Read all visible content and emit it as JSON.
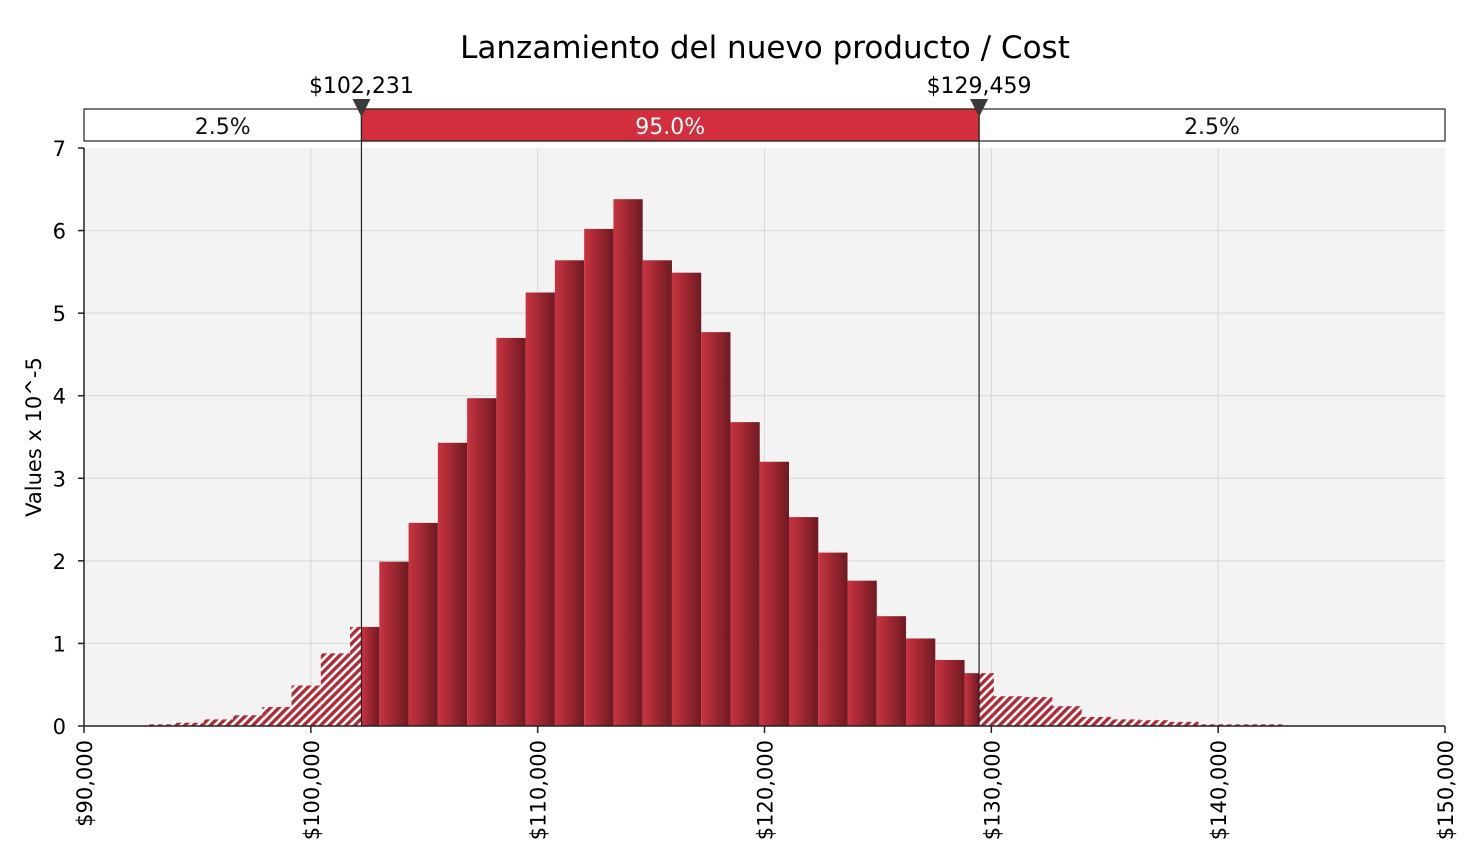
{
  "chart_data": {
    "type": "bar",
    "title": "Lanzamiento del nuevo producto / Cost",
    "xlabel": "",
    "ylabel": "Values x 10^-5",
    "xlim": [
      90000,
      150000
    ],
    "ylim": [
      0,
      7
    ],
    "x_ticks": [
      90000,
      100000,
      110000,
      120000,
      130000,
      140000,
      150000
    ],
    "x_tick_labels": [
      "$90,000",
      "$100,000",
      "$110,000",
      "$120,000",
      "$130,000",
      "$140,000",
      "$150,000"
    ],
    "y_ticks": [
      0,
      1,
      2,
      3,
      4,
      5,
      6,
      7
    ],
    "y_tick_labels": [
      "0",
      "1",
      "2",
      "3",
      "4",
      "5",
      "6",
      "7"
    ],
    "grid": true,
    "bin_width": 1290,
    "bin_starts": [
      92700,
      93990,
      95280,
      96570,
      97860,
      99150,
      100440,
      101730,
      103020,
      104310,
      105600,
      106890,
      108180,
      109470,
      110760,
      112050,
      113340,
      114630,
      115920,
      117210,
      118500,
      119790,
      121080,
      122370,
      123660,
      124950,
      126240,
      127530,
      128820,
      130110,
      131400,
      132690,
      133980,
      135270,
      136560,
      137850,
      139140,
      140430,
      141720,
      143010
    ],
    "values": [
      0.02,
      0.04,
      0.08,
      0.13,
      0.23,
      0.49,
      0.88,
      1.2,
      1.99,
      2.46,
      3.43,
      3.97,
      4.7,
      5.25,
      5.64,
      6.02,
      6.38,
      5.64,
      5.49,
      4.77,
      3.68,
      3.2,
      2.53,
      2.1,
      1.76,
      1.33,
      1.06,
      0.8,
      0.64,
      0.36,
      0.35,
      0.24,
      0.11,
      0.08,
      0.07,
      0.05,
      0.02,
      0.02,
      0.02,
      0.0
    ],
    "bin_shading": "left and right tails hatched, middle bins solid",
    "delimiters": [
      {
        "value": 102231,
        "label": "$102,231"
      },
      {
        "value": 129459,
        "label": "$129,459"
      }
    ],
    "regions": [
      {
        "label": "2.5%",
        "percent": 2.5
      },
      {
        "label": "95.0%",
        "percent": 95.0
      },
      {
        "label": "2.5%",
        "percent": 2.5
      }
    ],
    "colors": {
      "bar_fill": "#c0303c",
      "bar_dark": "#6e1a22",
      "highlight_band": "#d22e3e",
      "plot_background": "#f3f3f3",
      "grid": "#d8d8d8"
    }
  }
}
